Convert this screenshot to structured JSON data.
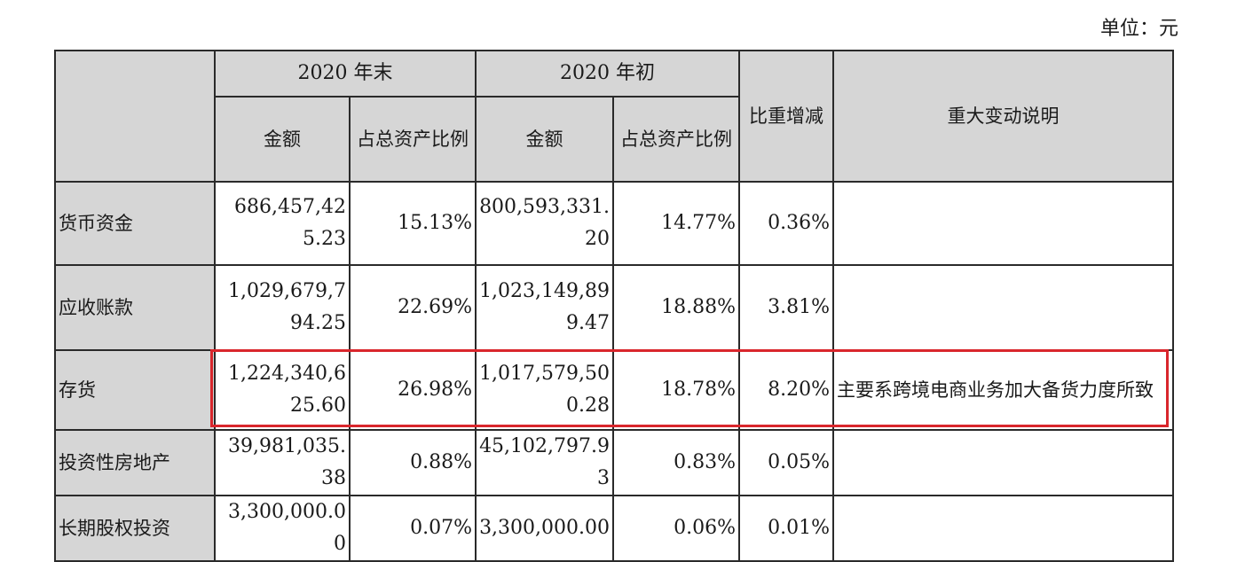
{
  "unit_label": "单位：元",
  "headers": {
    "end_2020": "2020 年末",
    "begin_2020": "2020 年初",
    "amount": "金额",
    "ratio": "占总资产比例",
    "change": "比重增减",
    "explanation": "重大变动说明"
  },
  "rows": [
    {
      "item": "货币资金",
      "end_amount": "686,457,425.23",
      "end_ratio": "15.13%",
      "begin_amount": "800,593,331.20",
      "begin_ratio": "14.77%",
      "change": "0.36%",
      "note": ""
    },
    {
      "item": "应收账款",
      "end_amount": "1,029,679,794.25",
      "end_ratio": "22.69%",
      "begin_amount": "1,023,149,899.47",
      "begin_ratio": "18.88%",
      "change": "3.81%",
      "note": ""
    },
    {
      "item": "存货",
      "end_amount": "1,224,340,625.60",
      "end_ratio": "26.98%",
      "begin_amount": "1,017,579,500.28",
      "begin_ratio": "18.78%",
      "change": "8.20%",
      "note": "主要系跨境电商业务加大备货力度所致"
    },
    {
      "item": "投资性房地产",
      "end_amount": "39,981,035.38",
      "end_ratio": "0.88%",
      "begin_amount": "45,102,797.93",
      "begin_ratio": "0.83%",
      "change": "0.05%",
      "note": ""
    },
    {
      "item": "长期股权投资",
      "end_amount": "3,300,000.00",
      "end_ratio": "0.07%",
      "begin_amount": "3,300,000.00",
      "begin_ratio": "0.06%",
      "change": "0.01%",
      "note": ""
    }
  ],
  "highlight_color": "#d9262c",
  "header_bg": "#d6d6d6"
}
